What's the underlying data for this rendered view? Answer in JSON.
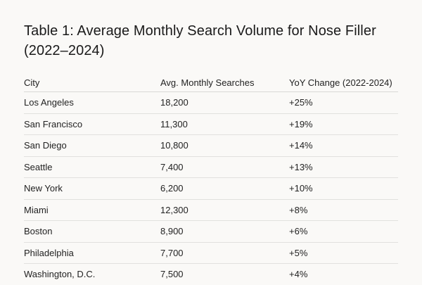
{
  "title": "Table 1: Average Monthly Search Volume for Nose Filler (2022–2024)",
  "table": {
    "headers": [
      "City",
      "Avg. Monthly Searches",
      "YoY Change (2022-2024)"
    ],
    "rows": [
      [
        "Los Angeles",
        "18,200",
        "+25%"
      ],
      [
        "San Francisco",
        "11,300",
        "+19%"
      ],
      [
        "San Diego",
        "10,800",
        "+14%"
      ],
      [
        "Seattle",
        "7,400",
        "+13%"
      ],
      [
        "New York",
        "6,200",
        "+10%"
      ],
      [
        "Miami",
        "12,300",
        "+8%"
      ],
      [
        "Boston",
        "8,900",
        "+6%"
      ],
      [
        "Philadelphia",
        "7,700",
        "+5%"
      ],
      [
        "Washington, D.C.",
        "7,500",
        "+4%"
      ]
    ]
  }
}
